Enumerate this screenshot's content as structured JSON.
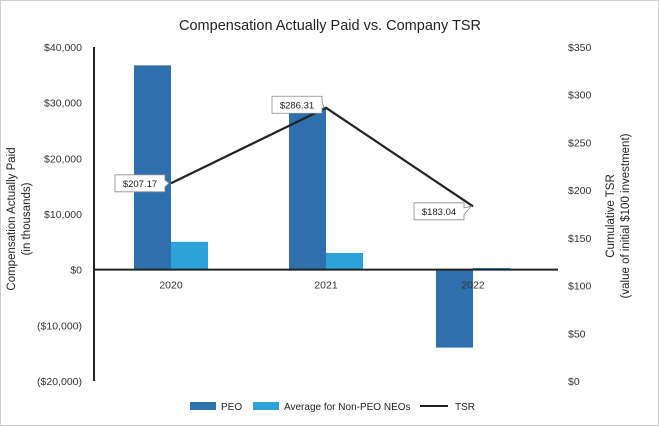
{
  "chart_data": {
    "type": "bar",
    "title": "Compensation Actually Paid vs. Company TSR",
    "categories": [
      "2020",
      "2021",
      "2022"
    ],
    "ylabel": [
      "Compensation Actually Paid",
      "(in thousands)"
    ],
    "y2label": [
      "Cumulative TSR",
      "(value of initial $100 investment)"
    ],
    "ylim": [
      -20000,
      40000
    ],
    "y2lim": [
      0,
      350
    ],
    "yticks": [
      {
        "value": 40000,
        "label": "$40,000"
      },
      {
        "value": 30000,
        "label": "$30,000"
      },
      {
        "value": 20000,
        "label": "$20,000"
      },
      {
        "value": 10000,
        "label": "$10,000"
      },
      {
        "value": 0,
        "label": "$0"
      },
      {
        "value": -10000,
        "label": "($10,000)"
      },
      {
        "value": -20000,
        "label": "($20,000)"
      }
    ],
    "y2ticks": [
      {
        "value": 350,
        "label": "$350"
      },
      {
        "value": 300,
        "label": "$300"
      },
      {
        "value": 250,
        "label": "$250"
      },
      {
        "value": 200,
        "label": "$200"
      },
      {
        "value": 150,
        "label": "$150"
      },
      {
        "value": 100,
        "label": "$100"
      },
      {
        "value": 50,
        "label": "$50"
      },
      {
        "value": 0,
        "label": "$0"
      }
    ],
    "series": [
      {
        "name": "PEO",
        "type": "bar",
        "axis": "left",
        "color": "#2e6fad",
        "values": [
          36700,
          29200,
          -14000
        ]
      },
      {
        "name": "Average for Non-PEO NEOs",
        "type": "bar",
        "axis": "left",
        "color": "#2ba3d8",
        "values": [
          5000,
          3000,
          300
        ]
      },
      {
        "name": "TSR",
        "type": "line",
        "axis": "right",
        "color": "#222222",
        "values": [
          207.17,
          286.31,
          183.04
        ],
        "labels": [
          "$207.17",
          "$286.31",
          "$183.04"
        ]
      }
    ],
    "legend": "bottom-center"
  }
}
